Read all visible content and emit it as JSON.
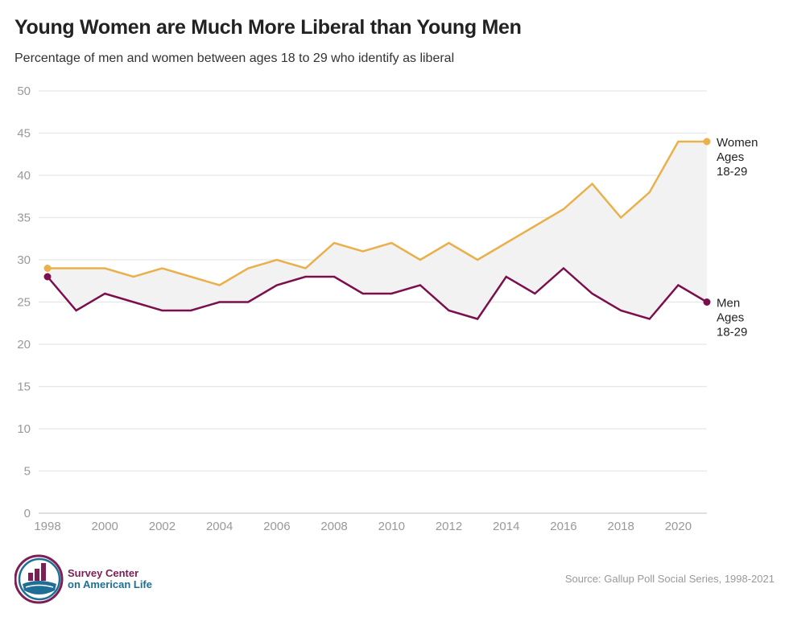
{
  "title": "Young Women are Much More Liberal than Young Men",
  "subtitle": "Percentage of men and women between ages 18 to 29 who identify as liberal",
  "source": "Source: Gallup Poll Social Series, 1998-2021",
  "logo": {
    "line1": "Survey Center",
    "line2": "on American Life"
  },
  "colors": {
    "women": "#E9B04B",
    "men": "#7B0F4E",
    "fill": "#F2F2F2",
    "grid": "#E6E6E6",
    "logo_purple": "#7B1F55",
    "logo_blue": "#1E6E96"
  },
  "chart_data": {
    "type": "line",
    "title": "Young Women are Much More Liberal than Young Men",
    "subtitle": "Percentage of men and women between ages 18 to 29 who identify as liberal",
    "x": [
      1998,
      1999,
      2000,
      2001,
      2002,
      2003,
      2004,
      2005,
      2006,
      2007,
      2008,
      2009,
      2010,
      2011,
      2012,
      2013,
      2014,
      2015,
      2016,
      2017,
      2018,
      2019,
      2020,
      2021
    ],
    "series": [
      {
        "name": "Women Ages 18-29",
        "label_lines": [
          "Women",
          "Ages",
          "18-29"
        ],
        "color": "#E9B04B",
        "values": [
          29,
          29,
          29,
          28,
          29,
          28,
          27,
          29,
          30,
          29,
          32,
          31,
          32,
          30,
          32,
          30,
          32,
          34,
          36,
          39,
          35,
          38,
          44,
          44
        ]
      },
      {
        "name": "Men Ages 18-29",
        "label_lines": [
          "Men",
          "Ages",
          "18-29"
        ],
        "color": "#7B0F4E",
        "values": [
          28,
          24,
          26,
          25,
          24,
          24,
          25,
          25,
          27,
          28,
          28,
          26,
          26,
          27,
          24,
          23,
          28,
          26,
          29,
          26,
          24,
          23,
          27,
          25
        ]
      }
    ],
    "ylim": [
      0,
      50
    ],
    "yticks": [
      0,
      5,
      10,
      15,
      20,
      25,
      30,
      35,
      40,
      45,
      50
    ],
    "xticks": [
      1998,
      2000,
      2002,
      2004,
      2006,
      2008,
      2010,
      2012,
      2014,
      2016,
      2018,
      2020
    ],
    "grid": true,
    "legend": "end-of-line labels",
    "gap_shaded": true
  }
}
